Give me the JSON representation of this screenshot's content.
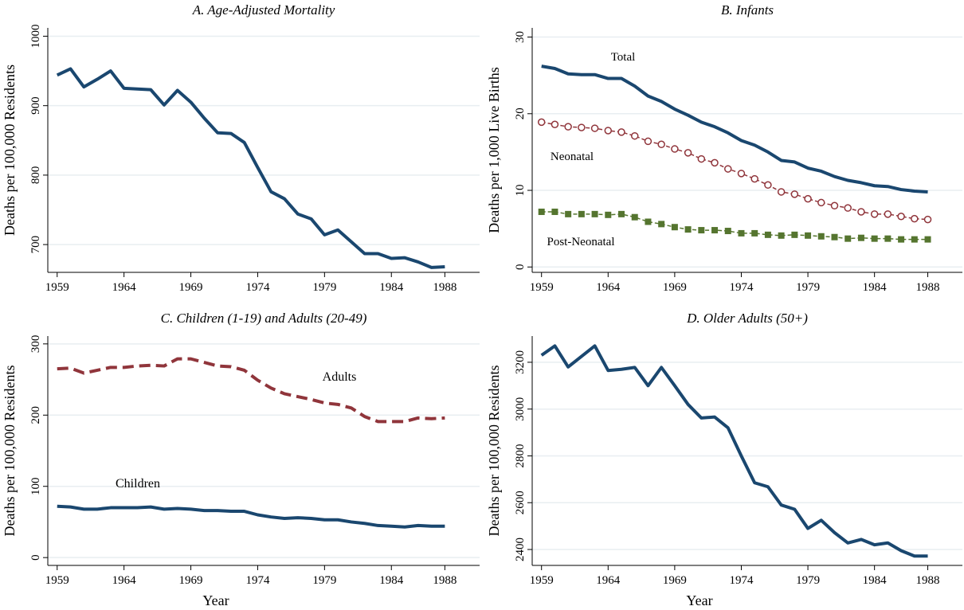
{
  "chart_data": [
    {
      "type": "line",
      "title": "A. Age-Adjusted Mortality",
      "y_label": "Deaths per 100,000 Residents",
      "x": [
        1959,
        1960,
        1961,
        1962,
        1963,
        1964,
        1965,
        1966,
        1967,
        1968,
        1969,
        1970,
        1971,
        1972,
        1973,
        1974,
        1975,
        1976,
        1977,
        1978,
        1979,
        1980,
        1981,
        1982,
        1983,
        1984,
        1985,
        1986,
        1987,
        1988
      ],
      "series": [
        {
          "color": "#1a476f",
          "values": [
            944,
            953,
            927,
            938,
            950,
            925,
            924,
            923,
            901,
            922,
            905,
            882,
            861,
            860,
            847,
            811,
            776,
            766,
            744,
            737,
            714,
            721,
            704,
            687,
            687,
            680,
            681,
            675,
            667,
            668
          ]
        }
      ],
      "xlim": [
        1958.3,
        1990.6
      ],
      "xticks": [
        1959,
        1964,
        1969,
        1974,
        1979,
        1984,
        1988
      ],
      "ylim": [
        660,
        1012
      ],
      "yticks": [
        700,
        800,
        900,
        1000
      ],
      "grid": true
    },
    {
      "type": "line",
      "title": "B. Infants",
      "y_label": "Deaths per 1,000 Live Births",
      "x": [
        1959,
        1960,
        1961,
        1962,
        1963,
        1964,
        1965,
        1966,
        1967,
        1968,
        1969,
        1970,
        1971,
        1972,
        1973,
        1974,
        1975,
        1976,
        1977,
        1978,
        1979,
        1980,
        1981,
        1982,
        1983,
        1984,
        1985,
        1986,
        1987,
        1988
      ],
      "series": [
        {
          "name": "Total",
          "color": "#1a476f",
          "values": [
            26.2,
            25.9,
            25.2,
            25.1,
            25.1,
            24.6,
            24.6,
            23.6,
            22.3,
            21.6,
            20.6,
            19.8,
            18.9,
            18.3,
            17.5,
            16.5,
            15.9,
            15.0,
            13.9,
            13.7,
            12.9,
            12.5,
            11.8,
            11.3,
            11.0,
            10.6,
            10.5,
            10.1,
            9.9,
            9.8
          ]
        },
        {
          "name": "Neonatal",
          "color": "#90353b",
          "marker": "circle",
          "dash": true,
          "values": [
            18.9,
            18.6,
            18.3,
            18.2,
            18.1,
            17.8,
            17.6,
            17.1,
            16.4,
            16.0,
            15.4,
            14.9,
            14.1,
            13.6,
            12.8,
            12.2,
            11.5,
            10.7,
            9.8,
            9.5,
            8.9,
            8.4,
            8.0,
            7.7,
            7.2,
            6.9,
            6.9,
            6.6,
            6.3,
            6.2
          ]
        },
        {
          "name": "Post-Neonatal",
          "color": "#55752f",
          "marker": "square",
          "dash": true,
          "values": [
            7.2,
            7.2,
            6.9,
            6.9,
            6.9,
            6.8,
            6.9,
            6.5,
            5.9,
            5.6,
            5.2,
            4.9,
            4.8,
            4.8,
            4.7,
            4.4,
            4.4,
            4.2,
            4.1,
            4.2,
            4.1,
            4.0,
            3.9,
            3.7,
            3.8,
            3.7,
            3.7,
            3.6,
            3.6,
            3.6
          ]
        }
      ],
      "xlim": [
        1958.3,
        1990.6
      ],
      "xticks": [
        1959,
        1964,
        1969,
        1974,
        1979,
        1984,
        1988
      ],
      "ylim": [
        -0.7,
        31.2
      ],
      "yticks": [
        0,
        10,
        20,
        30
      ],
      "grid": true
    },
    {
      "type": "line",
      "title": "C. Children (1-19) and Adults (20-49)",
      "y_label": "Deaths per 100,000 Residents",
      "x_label": "Year",
      "x": [
        1959,
        1960,
        1961,
        1962,
        1963,
        1964,
        1965,
        1966,
        1967,
        1968,
        1969,
        1970,
        1971,
        1972,
        1973,
        1974,
        1975,
        1976,
        1977,
        1978,
        1979,
        1980,
        1981,
        1982,
        1983,
        1984,
        1985,
        1986,
        1987,
        1988
      ],
      "series": [
        {
          "name": "Adults",
          "color": "#90353b",
          "dash": true,
          "values": [
            265,
            266,
            259,
            263,
            267,
            267,
            269,
            270,
            269,
            279,
            279,
            274,
            269,
            268,
            263,
            249,
            238,
            230,
            226,
            222,
            217,
            215,
            210,
            198,
            191,
            191,
            191,
            196,
            195,
            196
          ]
        },
        {
          "name": "Children",
          "color": "#1a476f",
          "values": [
            72,
            71,
            68,
            68,
            70,
            70,
            70,
            71,
            68,
            69,
            68,
            66,
            66,
            65,
            65,
            60,
            57,
            55,
            56,
            55,
            53,
            53,
            50,
            48,
            45,
            44,
            43,
            45,
            44,
            44
          ]
        }
      ],
      "xlim": [
        1958.3,
        1990.6
      ],
      "xticks": [
        1959,
        1964,
        1969,
        1974,
        1979,
        1984,
        1988
      ],
      "ylim": [
        -11,
        311
      ],
      "yticks": [
        0,
        100,
        200,
        300
      ],
      "grid": true
    },
    {
      "type": "line",
      "title": "D. Older Adults (50+)",
      "y_label": "Deaths per 100,000 Residents",
      "x_label": "Year",
      "x": [
        1959,
        1960,
        1961,
        1962,
        1963,
        1964,
        1965,
        1966,
        1967,
        1968,
        1969,
        1970,
        1971,
        1972,
        1973,
        1974,
        1975,
        1976,
        1977,
        1978,
        1979,
        1980,
        1981,
        1982,
        1983,
        1984,
        1985,
        1986,
        1987,
        1988
      ],
      "series": [
        {
          "color": "#1a476f",
          "values": [
            3230,
            3270,
            3180,
            3225,
            3270,
            3165,
            3170,
            3178,
            3100,
            3178,
            3100,
            3020,
            2962,
            2966,
            2920,
            2800,
            2685,
            2668,
            2590,
            2572,
            2490,
            2525,
            2472,
            2428,
            2443,
            2420,
            2428,
            2395,
            2372,
            2372
          ]
        }
      ],
      "xlim": [
        1958.3,
        1990.6
      ],
      "xticks": [
        1959,
        1964,
        1969,
        1974,
        1979,
        1984,
        1988
      ],
      "ylim": [
        2332,
        3312
      ],
      "yticks": [
        2400,
        2600,
        2800,
        3000,
        3200
      ],
      "grid": true
    }
  ]
}
